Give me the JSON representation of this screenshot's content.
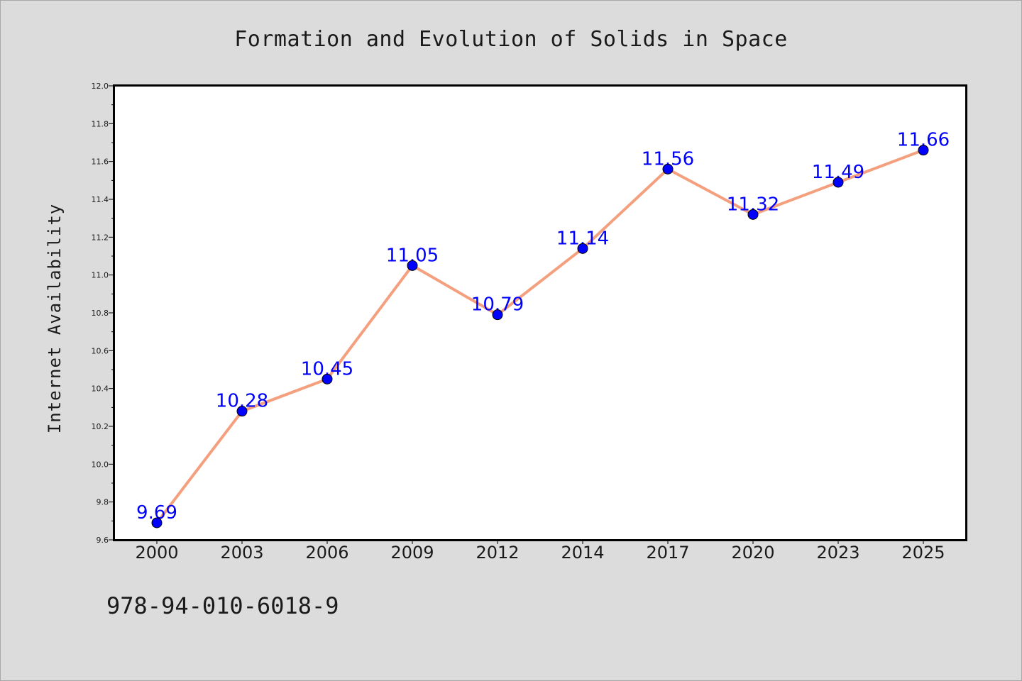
{
  "chart_data": {
    "type": "line",
    "title": "Formation and Evolution of Solids in Space",
    "xlabel": "",
    "ylabel": "Internet Availability",
    "categories": [
      "2000",
      "2003",
      "2006",
      "2009",
      "2012",
      "2014",
      "2017",
      "2020",
      "2023",
      "2025"
    ],
    "values": [
      9.69,
      10.28,
      10.45,
      11.05,
      10.79,
      11.14,
      11.56,
      11.32,
      11.49,
      11.66
    ],
    "data_labels": [
      "9.69",
      "10.28",
      "10.45",
      "11.05",
      "10.79",
      "11.14",
      "11.56",
      "11.32",
      "11.49",
      "11.66"
    ],
    "ylim": [
      9.6,
      12.0
    ],
    "yticks": [
      9.6,
      9.8,
      10.0,
      10.2,
      10.4,
      10.6,
      10.8,
      11.0,
      11.2,
      11.4,
      11.6,
      11.8,
      12.0
    ],
    "ytick_labels": [
      "9.6",
      "9.8",
      "10.0",
      "10.2",
      "10.4",
      "10.6",
      "10.8",
      "11.0",
      "11.2",
      "11.4",
      "11.6",
      "11.8",
      "12.0"
    ],
    "grid": false,
    "legend": "none",
    "line_color": "#f4a07e",
    "marker_color": "#0000ff",
    "label_color": "#0000ff",
    "background_color": "#dcdcdc",
    "plot_background": "#ffffff"
  },
  "footer": {
    "isbn": "978-94-010-6018-9"
  }
}
